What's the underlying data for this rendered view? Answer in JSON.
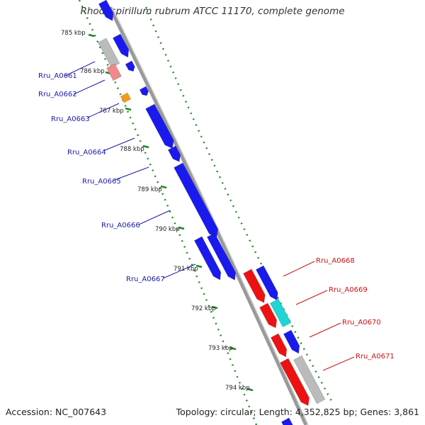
{
  "header": {
    "title": "Rhodospirillum rubrum ATCC 11170, complete genome"
  },
  "footer": {
    "accession": "Accession: NC_007643",
    "summary": "Topology: circular; Length: 4,352,825 bp; Genes: 3,861"
  },
  "colors": {
    "forward": "#1a1aee",
    "reverse": "#ee1111",
    "other": "#bbbbbb",
    "pink": "#f08a8a",
    "orange": "#f59a1a",
    "cyan": "#1ed4d4",
    "backbone": "#888888",
    "tick": "#1f8a1f",
    "left_label": "#1a1aaa",
    "right_label": "#cc1111"
  },
  "kbp_labels": [
    "785 kbp",
    "786 kbp",
    "787 kbp",
    "788 kbp",
    "789 kbp",
    "790 kbp",
    "791 kbp",
    "792 kbp",
    "793 kbp",
    "794 kbp"
  ],
  "left_genes": [
    "Rru_A0661",
    "Rru_A0662",
    "Rru_A0663",
    "Rru_A0664",
    "Rru_A0665",
    "Rru_A0666",
    "Rru_A0667"
  ],
  "right_genes": [
    "Rru_A0668",
    "Rru_A0669",
    "Rru_A0670",
    "Rru_A0671"
  ]
}
